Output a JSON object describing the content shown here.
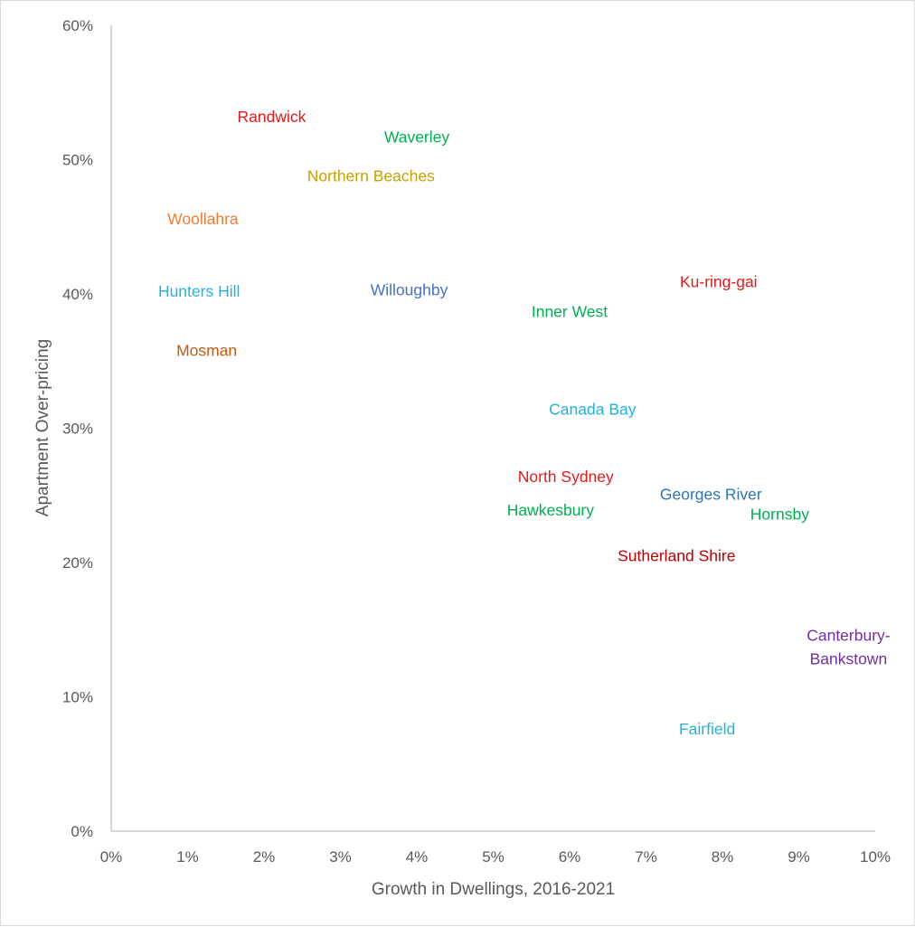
{
  "chart_data": {
    "type": "scatter",
    "title": "",
    "xlabel": "Growth in Dwellings, 2016-2021",
    "ylabel": "Apartment Over-pricing",
    "xlim": [
      0,
      10
    ],
    "ylim": [
      0,
      60
    ],
    "x_ticks": [
      "0%",
      "1%",
      "2%",
      "3%",
      "4%",
      "5%",
      "6%",
      "7%",
      "8%",
      "9%",
      "10%"
    ],
    "y_ticks": [
      "0%",
      "10%",
      "20%",
      "30%",
      "40%",
      "50%",
      "60%"
    ],
    "grid": false,
    "legend": "none",
    "points": [
      {
        "label": "Randwick",
        "x": 2.1,
        "y": 53.2,
        "color": "#e31a1c"
      },
      {
        "label": "Waverley",
        "x": 4.0,
        "y": 51.7,
        "color": "#00b050"
      },
      {
        "label": "Northern Beaches",
        "x": 3.4,
        "y": 48.8,
        "color": "#c9a000"
      },
      {
        "label": "Woollahra",
        "x": 1.2,
        "y": 45.6,
        "color": "#ed7d31"
      },
      {
        "label": "Hunters Hill",
        "x": 1.15,
        "y": 40.2,
        "color": "#1fb4e0"
      },
      {
        "label": "Willoughby",
        "x": 3.9,
        "y": 40.3,
        "color": "#4472c4"
      },
      {
        "label": "Ku-ring-gai",
        "x": 7.95,
        "y": 40.9,
        "color": "#e31a1c"
      },
      {
        "label": "Inner West",
        "x": 6.0,
        "y": 38.7,
        "color": "#00b050"
      },
      {
        "label": "Mosman",
        "x": 1.25,
        "y": 35.8,
        "color": "#c55a11"
      },
      {
        "label": "Canada Bay",
        "x": 6.3,
        "y": 31.4,
        "color": "#1fb4e0"
      },
      {
        "label": "North Sydney",
        "x": 5.95,
        "y": 26.4,
        "color": "#e31a1c"
      },
      {
        "label": "Georges River",
        "x": 7.85,
        "y": 25.1,
        "color": "#2e75b6"
      },
      {
        "label": "Hawkesbury",
        "x": 5.75,
        "y": 23.9,
        "color": "#00b050"
      },
      {
        "label": "Hornsby",
        "x": 8.75,
        "y": 23.6,
        "color": "#00b050"
      },
      {
        "label": "Sutherland Shire",
        "x": 7.4,
        "y": 20.5,
        "color": "#c00000"
      },
      {
        "label": "Canterbury-\nBankstown",
        "x": 9.65,
        "y": 13.7,
        "color": "#7030a0"
      },
      {
        "label": "Fairfield",
        "x": 7.8,
        "y": 7.6,
        "color": "#1fb4e0"
      }
    ]
  }
}
